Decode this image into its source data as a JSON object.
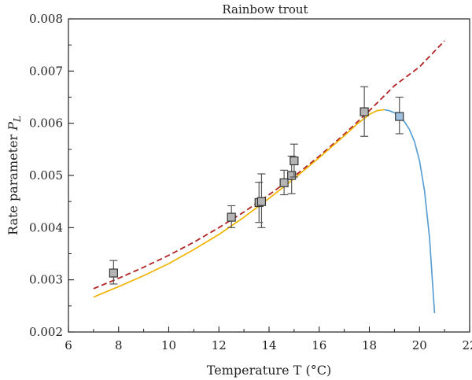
{
  "chart_data": {
    "type": "scatter",
    "title": "Rainbow trout",
    "xlabel": "Temperature T (°C)",
    "ylabel": "Rate parameter",
    "ylabel_symbol": "P",
    "ylabel_subscript": "L",
    "xlim": [
      6,
      22
    ],
    "ylim": [
      0.002,
      0.008
    ],
    "xticks": [
      "6",
      "8",
      "10",
      "12",
      "14",
      "16",
      "18",
      "20",
      "22"
    ],
    "yticks": [
      "0.002",
      "0.003",
      "0.004",
      "0.005",
      "0.006",
      "0.007",
      "0.008"
    ],
    "grid": false,
    "colors": {
      "marker_fill": "#b5b5b5",
      "marker_fill_last": "#9dbfe0",
      "marker_edge": "#333333",
      "errorbar": "#555555",
      "dashed_fit": "#b22222",
      "solid_fit": "#f0b400",
      "decline_fit": "#5a9fd4",
      "axis": "#222222"
    },
    "points": [
      {
        "x": 7.8,
        "y": 0.00313,
        "ylow": 0.00292,
        "yhigh": 0.00337
      },
      {
        "x": 12.5,
        "y": 0.0042,
        "ylow": 0.004,
        "yhigh": 0.00442
      },
      {
        "x": 13.6,
        "y": 0.00448,
        "ylow": 0.0041,
        "yhigh": 0.00487
      },
      {
        "x": 13.7,
        "y": 0.0045,
        "ylow": 0.004,
        "yhigh": 0.00503
      },
      {
        "x": 14.6,
        "y": 0.00486,
        "ylow": 0.00463,
        "yhigh": 0.0051
      },
      {
        "x": 14.9,
        "y": 0.005,
        "ylow": 0.00465,
        "yhigh": 0.00537
      },
      {
        "x": 15.0,
        "y": 0.00528,
        "ylow": 0.00497,
        "yhigh": 0.0056
      },
      {
        "x": 17.8,
        "y": 0.00622,
        "ylow": 0.00575,
        "yhigh": 0.0067
      },
      {
        "x": 19.2,
        "y": 0.00613,
        "ylow": 0.0058,
        "yhigh": 0.0065
      }
    ],
    "curves": [
      {
        "style": "dashed",
        "color": "#b22222",
        "x": [
          7,
          8,
          9,
          10,
          11,
          12,
          13,
          14,
          15,
          16,
          17,
          18,
          19,
          20,
          21
        ],
        "y": [
          0.00283,
          0.00303,
          0.00324,
          0.00347,
          0.00372,
          0.004,
          0.0043,
          0.00463,
          0.00498,
          0.00537,
          0.00579,
          0.00624,
          0.00672,
          0.00708,
          0.00758
        ]
      },
      {
        "style": "solid",
        "color": "#f0b400",
        "x": [
          7,
          8,
          9,
          10,
          11,
          12,
          13,
          14,
          15,
          16,
          17,
          17.5,
          18,
          18.3,
          18.6
        ],
        "y": [
          0.00267,
          0.00287,
          0.00308,
          0.00331,
          0.00358,
          0.00387,
          0.0042,
          0.00456,
          0.00494,
          0.00534,
          0.00576,
          0.00598,
          0.00617,
          0.00624,
          0.00626
        ]
      },
      {
        "style": "solid",
        "color": "#5a9fd4",
        "x": [
          18.6,
          18.8,
          19.0,
          19.2,
          19.4,
          19.6,
          19.8,
          20.0,
          20.2,
          20.4,
          20.6
        ],
        "y": [
          0.00626,
          0.00624,
          0.0062,
          0.00613,
          0.00603,
          0.00588,
          0.00565,
          0.00528,
          0.00471,
          0.00381,
          0.00236
        ]
      }
    ]
  }
}
